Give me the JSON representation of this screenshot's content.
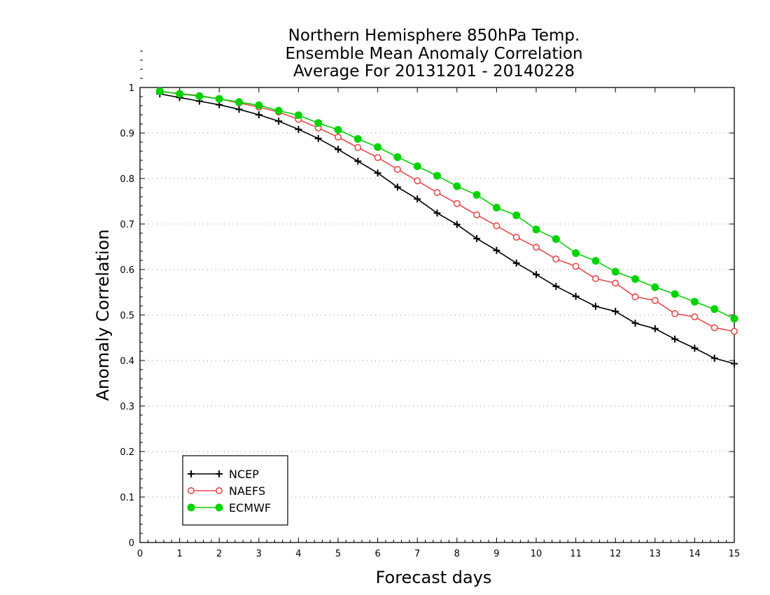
{
  "chart_data": {
    "type": "line",
    "title_lines": [
      "Northern Hemisphere 850hPa Temp.",
      "Ensemble Mean Anomaly Correlation",
      "Average For 20131201 - 20140228"
    ],
    "xlabel": "Forecast days",
    "ylabel": "Anomaly Correlation",
    "xlim": [
      0,
      15
    ],
    "ylim": [
      0,
      1
    ],
    "x_ticks": [
      "0",
      "1",
      "2",
      "3",
      "4",
      "5",
      "6",
      "7",
      "8",
      "9",
      "10",
      "11",
      "12",
      "13",
      "14",
      "15"
    ],
    "y_ticks": [
      "0",
      "0.1",
      "0.2",
      "0.3",
      "0.4",
      "0.5",
      "0.6",
      "0.7",
      "0.8",
      "0.9",
      "1"
    ],
    "grid": "horizontal dotted",
    "legend_placement": "bottom-left",
    "x": [
      0.5,
      1,
      1.5,
      2,
      2.5,
      3,
      3.5,
      4,
      4.5,
      5,
      5.5,
      6,
      6.5,
      7,
      7.5,
      8,
      8.5,
      9,
      9.5,
      10,
      10.5,
      11,
      11.5,
      12,
      12.5,
      13,
      13.5,
      14,
      14.5,
      15
    ],
    "series": [
      {
        "name": "NCEP",
        "color": "#000000",
        "marker": "plus",
        "values": [
          0.986,
          0.978,
          0.97,
          0.962,
          0.952,
          0.94,
          0.926,
          0.908,
          0.888,
          0.864,
          0.838,
          0.812,
          0.781,
          0.755,
          0.724,
          0.699,
          0.668,
          0.642,
          0.614,
          0.589,
          0.563,
          0.541,
          0.519,
          0.508,
          0.482,
          0.47,
          0.447,
          0.427,
          0.405,
          0.393
        ]
      },
      {
        "name": "NAEFS",
        "color": "#e8474c",
        "marker": "open-circle",
        "values": [
          0.991,
          0.987,
          0.982,
          0.975,
          0.966,
          0.957,
          0.946,
          0.93,
          0.911,
          0.891,
          0.868,
          0.846,
          0.82,
          0.795,
          0.769,
          0.745,
          0.72,
          0.696,
          0.671,
          0.649,
          0.623,
          0.607,
          0.58,
          0.57,
          0.54,
          0.532,
          0.503,
          0.496,
          0.472,
          0.464
        ]
      },
      {
        "name": "ECMWF",
        "color": "#00d400",
        "marker": "filled-circle",
        "values": [
          0.992,
          0.986,
          0.981,
          0.975,
          0.968,
          0.961,
          0.949,
          0.939,
          0.922,
          0.907,
          0.887,
          0.869,
          0.847,
          0.827,
          0.806,
          0.783,
          0.764,
          0.736,
          0.719,
          0.688,
          0.667,
          0.636,
          0.619,
          0.595,
          0.579,
          0.561,
          0.546,
          0.529,
          0.513,
          0.492
        ]
      }
    ]
  }
}
